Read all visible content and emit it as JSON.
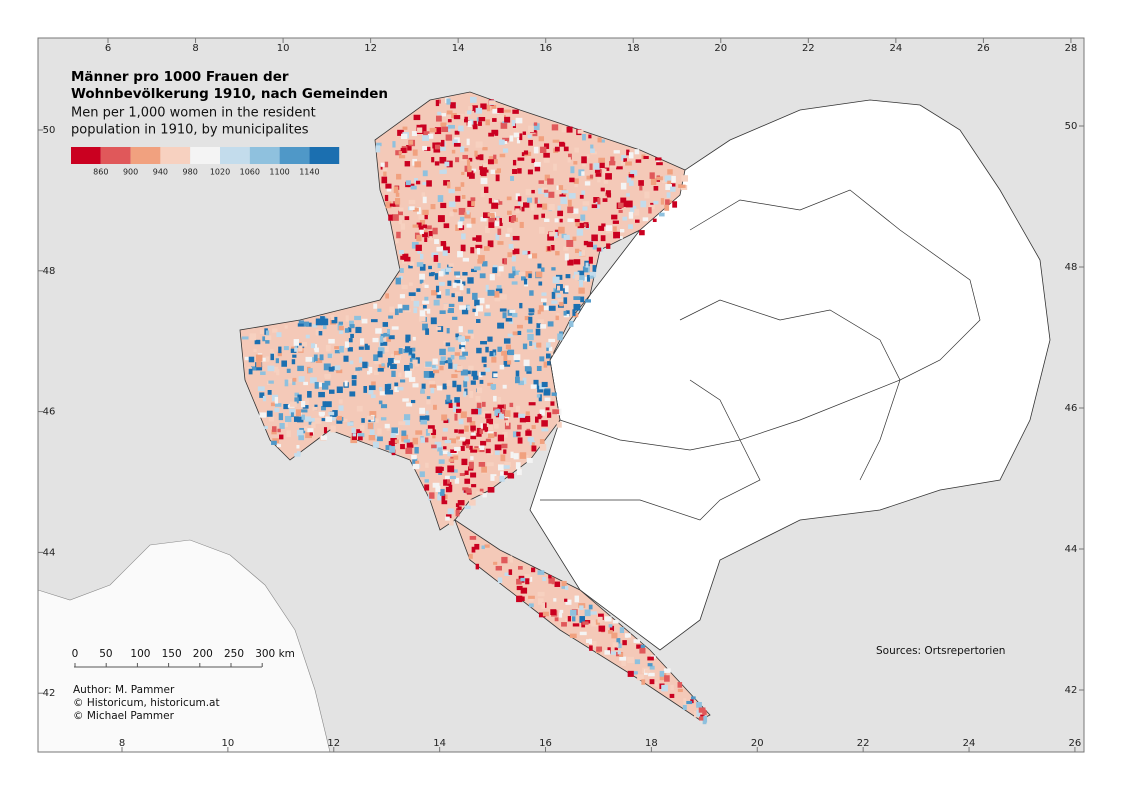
{
  "map": {
    "title_lines": [
      "Männer pro 1000 Frauen der",
      "Wohnbevölkerung 1910, nach Gemeinden"
    ],
    "subtitle_lines": [
      "Men per 1,000 women in the resident",
      "population in 1910, by municipalites"
    ],
    "legend": {
      "colors": [
        "#ca0020",
        "#e0585a",
        "#f1a17f",
        "#f7d1c0",
        "#f4f4f4",
        "#c3dcec",
        "#8fc1de",
        "#4f98c8",
        "#1b6fb0"
      ],
      "breaks": [
        860,
        900,
        940,
        980,
        1020,
        1060,
        1100,
        1140
      ]
    },
    "top_ticks": [
      6,
      8,
      10,
      12,
      14,
      16,
      18,
      20,
      22,
      24,
      26,
      28
    ],
    "bottom_ticks": [
      8,
      10,
      12,
      14,
      16,
      18,
      20,
      22,
      24,
      26
    ],
    "left_ticks": [
      42,
      44,
      46,
      48,
      50
    ],
    "right_ticks": [
      42,
      44,
      46,
      48,
      50
    ],
    "scale_bar": [
      "0",
      "50",
      "100",
      "150",
      "200",
      "250",
      "300 km"
    ],
    "credits": [
      "Author: M. Pammer",
      "© Historicum, historicum.at",
      "© Michael Pammer"
    ],
    "sources": "Sources: Ortsrepertorien"
  }
}
